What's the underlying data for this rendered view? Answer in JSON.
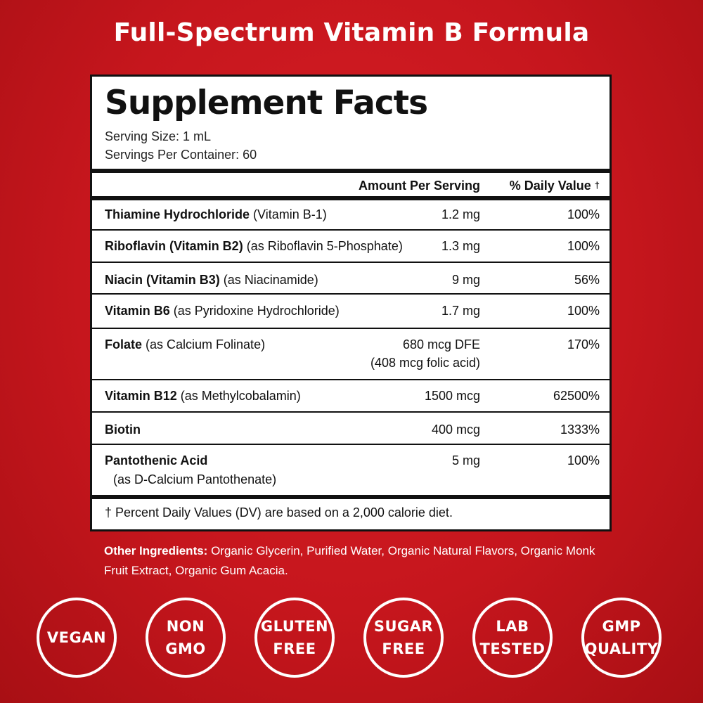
{
  "headline": "Full-Spectrum Vitamin B Formula",
  "facts": {
    "title": "Supplement Facts",
    "serving_size": "Serving Size: 1 mL",
    "servings_per_container": "Servings Per Container: 60",
    "header_amount": "Amount Per Serving",
    "header_dv": "% Daily Value",
    "header_dagger": "†",
    "rows": [
      {
        "name_bold": "Thiamine Hydrochloride",
        "name_rest": " (Vitamin B-1)",
        "amount": "1.2 mg",
        "dv": "100%"
      },
      {
        "name_bold": "Riboflavin (Vitamin B2)",
        "name_rest": " (as Riboflavin 5-Phosphate)",
        "amount": "1.3 mg",
        "dv": "100%"
      },
      {
        "name_bold": "Niacin (Vitamin B3)",
        "name_rest": " (as Niacinamide)",
        "amount": "9 mg",
        "dv": "56%"
      },
      {
        "name_bold": "Vitamin B6",
        "name_rest": " (as Pyridoxine Hydrochloride)",
        "amount": "1.7 mg",
        "dv": "100%"
      },
      {
        "name_bold": "Folate",
        "name_rest": " (as Calcium Folinate)",
        "amount": "680 mcg DFE",
        "amount_line2": "(408 mcg folic acid)",
        "dv": "170%"
      },
      {
        "name_bold": "Vitamin B12",
        "name_rest": " (as Methylcobalamin)",
        "amount": "1500 mcg",
        "dv": "62500%"
      },
      {
        "name_bold": "Biotin",
        "name_rest": "",
        "amount": "400 mcg",
        "dv": "1333%"
      },
      {
        "name_bold": "Pantothenic Acid",
        "name_line2": "(as D-Calcium Pantothenate)",
        "amount": "5 mg",
        "dv": "100%"
      }
    ],
    "footnote": "† Percent Daily Values (DV) are based on a 2,000 calorie diet."
  },
  "other_ingredients": {
    "label": "Other Ingredients:",
    "text": " Organic Glycerin, Purified Water, Organic Natural Flavors, Organic Monk Fruit Extract, Organic Gum Acacia."
  },
  "badges": [
    {
      "line1": "VEGAN",
      "line2": ""
    },
    {
      "line1": "NON",
      "line2": "GMO"
    },
    {
      "line1": "GLUTEN",
      "line2": "FREE"
    },
    {
      "line1": "SUGAR",
      "line2": "FREE"
    },
    {
      "line1": "LAB",
      "line2": "TESTED"
    },
    {
      "line1": "GMP",
      "line2": "QUALITY"
    }
  ]
}
